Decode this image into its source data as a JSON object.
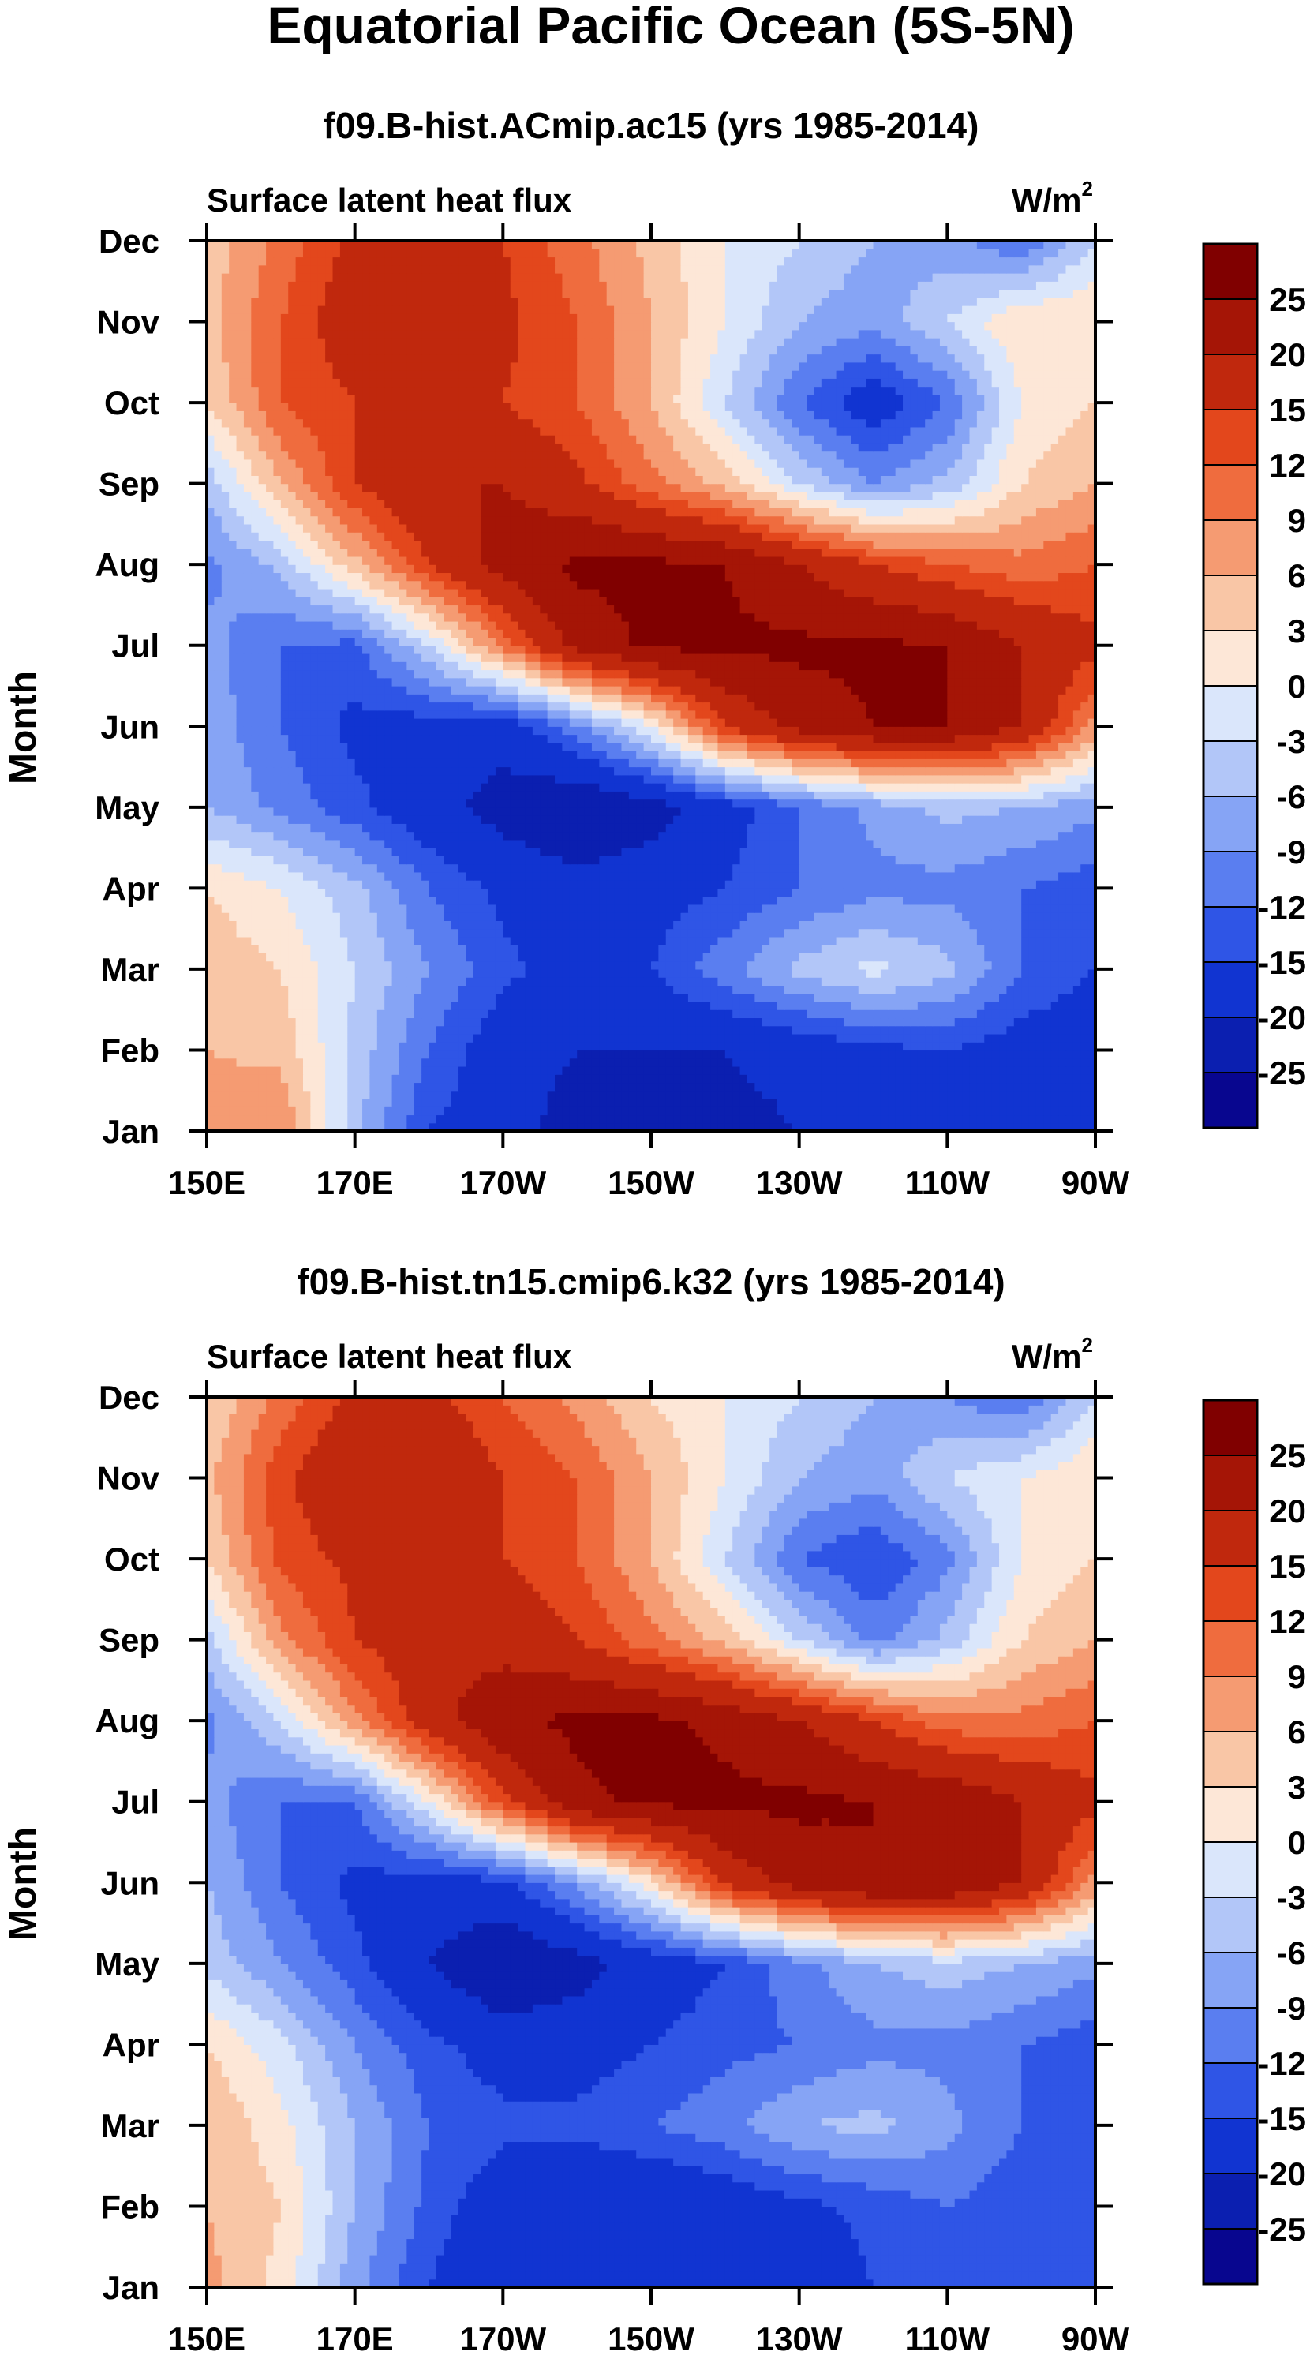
{
  "figure": {
    "title": "Equatorial Pacific Ocean (5S-5N)"
  },
  "palette": {
    "levels": [
      -25,
      -20,
      -15,
      -12,
      -9,
      -6,
      -3,
      0,
      3,
      6,
      9,
      12,
      15,
      20,
      25
    ],
    "colors": [
      "#08068f",
      "#0b1fb0",
      "#1134d1",
      "#2f55e6",
      "#5a7ef0",
      "#86a4f5",
      "#b2c6f8",
      "#dae6fb",
      "#fde7d7",
      "#f9c6a6",
      "#f59b72",
      "#ef6c3e",
      "#e3471c",
      "#c0280d",
      "#a51506",
      "#800000"
    ]
  },
  "chart_data": [
    {
      "type": "heatmap",
      "plot_type": "filled contour (Hovmoller)",
      "title": "f09.B-hist.ACmip.ac15 (yrs 1985-2014)",
      "variable": "Surface latent heat flux",
      "units": "W/m",
      "units_superscript": "2",
      "xlabel": "",
      "ylabel": "Month",
      "x_ticks": [
        "150E",
        "170E",
        "170W",
        "150W",
        "130W",
        "110W",
        "90W"
      ],
      "x_range": [
        150,
        270
      ],
      "y_ticks": [
        "Jan",
        "Feb",
        "Mar",
        "Apr",
        "May",
        "Jun",
        "Jul",
        "Aug",
        "Sep",
        "Oct",
        "Nov",
        "Dec"
      ],
      "y_range": [
        1,
        12
      ],
      "colorbar_labels": [
        "25",
        "20",
        "15",
        "12",
        "9",
        "6",
        "3",
        "0",
        "-3",
        "-6",
        "-9",
        "-12",
        "-15",
        "-20",
        "-25"
      ],
      "x_lons": [
        150,
        160,
        170,
        180,
        190,
        200,
        210,
        220,
        230,
        240,
        250,
        260,
        270
      ],
      "values": [
        [
          8,
          9,
          -5,
          -15,
          -18,
          -22,
          -20,
          -22,
          -20,
          -18,
          -15,
          -20,
          -18
        ],
        [
          6,
          5,
          -4,
          -12,
          -18,
          -20,
          -20,
          -20,
          -18,
          -16,
          -15,
          -17,
          -18
        ],
        [
          5,
          3,
          -3,
          -9,
          -14,
          -17,
          -15,
          -10,
          -5,
          -2,
          -5,
          -12,
          -15
        ],
        [
          3,
          0,
          -5,
          -12,
          -16,
          -18,
          -17,
          -15,
          -12,
          -10,
          -10,
          -12,
          -14
        ],
        [
          -6,
          -10,
          -14,
          -18,
          -22,
          -25,
          -22,
          -17,
          -12,
          -8,
          -5,
          -6,
          -8
        ],
        [
          -7,
          -12,
          -16,
          -17,
          -18,
          -10,
          0,
          15,
          22,
          25,
          25,
          20,
          8
        ],
        [
          -8,
          -12,
          -13,
          -3,
          10,
          22,
          26,
          26,
          26,
          26,
          25,
          20,
          16
        ],
        [
          -10,
          -5,
          5,
          15,
          22,
          26,
          26,
          25,
          20,
          15,
          12,
          10,
          12
        ],
        [
          -5,
          6,
          15,
          20,
          20,
          16,
          10,
          5,
          -3,
          -9,
          -5,
          3,
          6
        ],
        [
          3,
          12,
          15,
          16,
          15,
          12,
          6,
          -3,
          -12,
          -18,
          -12,
          0,
          3
        ],
        [
          5,
          12,
          18,
          18,
          16,
          12,
          6,
          0,
          -6,
          -8,
          -3,
          3,
          3
        ],
        [
          4,
          10,
          16,
          18,
          15,
          10,
          5,
          0,
          -3,
          -6,
          -8,
          -12,
          -3
        ]
      ]
    },
    {
      "type": "heatmap",
      "plot_type": "filled contour (Hovmoller)",
      "title": "f09.B-hist.tn15.cmip6.k32 (yrs 1985-2014)",
      "variable": "Surface latent heat flux",
      "units": "W/m",
      "units_superscript": "2",
      "xlabel": "",
      "ylabel": "Month",
      "x_ticks": [
        "150E",
        "170E",
        "170W",
        "150W",
        "130W",
        "110W",
        "90W"
      ],
      "x_range": [
        150,
        270
      ],
      "y_ticks": [
        "Jan",
        "Feb",
        "Mar",
        "Apr",
        "May",
        "Jun",
        "Jul",
        "Aug",
        "Sep",
        "Oct",
        "Nov",
        "Dec"
      ],
      "y_range": [
        1,
        12
      ],
      "colorbar_labels": [
        "25",
        "20",
        "15",
        "12",
        "9",
        "6",
        "3",
        "0",
        "-3",
        "-6",
        "-9",
        "-12",
        "-15",
        "-20",
        "-25"
      ],
      "x_lons": [
        150,
        160,
        170,
        180,
        190,
        200,
        210,
        220,
        230,
        240,
        250,
        260,
        270
      ],
      "values": [
        [
          7,
          2,
          -8,
          -15,
          -20,
          -20,
          -20,
          -20,
          -18,
          -15,
          -12,
          -15,
          -15
        ],
        [
          6,
          3,
          -6,
          -13,
          -18,
          -20,
          -20,
          -18,
          -16,
          -14,
          -12,
          -14,
          -15
        ],
        [
          6,
          1,
          -6,
          -12,
          -14,
          -14,
          -12,
          -10,
          -6,
          -5,
          -8,
          -12,
          -14
        ],
        [
          3,
          -2,
          -9,
          -14,
          -17,
          -17,
          -15,
          -13,
          -12,
          -10,
          -10,
          -12,
          -14
        ],
        [
          -4,
          -9,
          -14,
          -20,
          -25,
          -22,
          -18,
          -15,
          -10,
          -6,
          -4,
          -6,
          -8
        ],
        [
          -6,
          -12,
          -16,
          -17,
          -16,
          -8,
          2,
          16,
          22,
          25,
          25,
          20,
          8
        ],
        [
          -8,
          -12,
          -12,
          0,
          14,
          24,
          26,
          26,
          26,
          25,
          24,
          20,
          16
        ],
        [
          -10,
          -3,
          8,
          18,
          24,
          26,
          26,
          24,
          20,
          15,
          10,
          10,
          12
        ],
        [
          -4,
          8,
          15,
          18,
          18,
          15,
          10,
          5,
          -3,
          -10,
          -5,
          3,
          6
        ],
        [
          3,
          13,
          16,
          16,
          15,
          12,
          6,
          -3,
          -12,
          -15,
          -10,
          0,
          3
        ],
        [
          5,
          14,
          20,
          20,
          15,
          12,
          6,
          0,
          -6,
          -8,
          -3,
          0,
          3
        ],
        [
          3,
          10,
          16,
          16,
          12,
          8,
          3,
          0,
          -3,
          -6,
          -9,
          -12,
          -3
        ]
      ]
    }
  ]
}
